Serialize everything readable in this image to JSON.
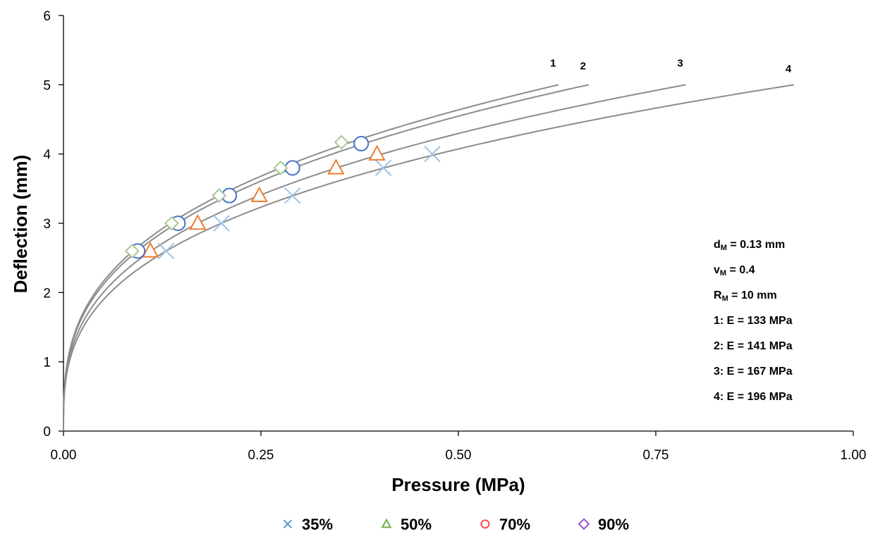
{
  "chart_data": {
    "type": "scatter",
    "xlabel": "Pressure (MPa)",
    "ylabel": "Deflection (mm)",
    "xlim": [
      0,
      1.0
    ],
    "ylim": [
      0,
      6
    ],
    "xticks": [
      "0.00",
      "0.25",
      "0.50",
      "0.75",
      "1.00"
    ],
    "yticks": [
      "0",
      "1",
      "2",
      "3",
      "4",
      "5",
      "6"
    ],
    "grid": false,
    "legend_position": "bottom",
    "curves": [
      {
        "label": "1",
        "E": 133,
        "xmax": 0.627
      },
      {
        "label": "2",
        "E": 141,
        "xmax": 0.665
      },
      {
        "label": "3",
        "E": 167,
        "xmax": 0.788
      },
      {
        "label": "4",
        "E": 196,
        "xmax": 0.925
      }
    ],
    "curve_color": "#8c8c8c",
    "series": [
      {
        "name": "35%",
        "marker": "x",
        "legend_color": "#5b9bd5",
        "color": "#9dc3e6",
        "points": [
          [
            0.13,
            2.6
          ],
          [
            0.2,
            3.0
          ],
          [
            0.29,
            3.4
          ],
          [
            0.405,
            3.8
          ],
          [
            0.467,
            4.0
          ]
        ]
      },
      {
        "name": "50%",
        "marker": "triangle",
        "legend_color": "#70ad47",
        "color": "#ed7d31",
        "points": [
          [
            0.11,
            2.6
          ],
          [
            0.17,
            3.0
          ],
          [
            0.248,
            3.4
          ],
          [
            0.345,
            3.8
          ],
          [
            0.397,
            4.0
          ]
        ]
      },
      {
        "name": "70%",
        "marker": "circle",
        "legend_color": "#ff4b4b",
        "color": "#4472c4",
        "points": [
          [
            0.094,
            2.6
          ],
          [
            0.145,
            3.0
          ],
          [
            0.21,
            3.4
          ],
          [
            0.29,
            3.8
          ],
          [
            0.377,
            4.15
          ]
        ]
      },
      {
        "name": "90%",
        "marker": "diamond",
        "legend_color": "#9b59d0",
        "color": "#a9c79a",
        "points": [
          [
            0.087,
            2.6
          ],
          [
            0.137,
            3.0
          ],
          [
            0.197,
            3.4
          ],
          [
            0.275,
            3.8
          ],
          [
            0.352,
            4.17
          ]
        ]
      }
    ],
    "annotations": [
      {
        "key": "ann1",
        "main": "d",
        "sub": "M",
        "rest": " = 0.13 mm"
      },
      {
        "key": "ann2",
        "main": "v",
        "sub": "M",
        "rest": " = 0.4"
      },
      {
        "key": "ann3",
        "main": "R",
        "sub": "M",
        "rest": " = 10 mm"
      },
      {
        "key": "ann4",
        "main": "1: E = 133 MPa",
        "sub": "",
        "rest": ""
      },
      {
        "key": "ann5",
        "main": "2: E = 141 MPa",
        "sub": "",
        "rest": ""
      },
      {
        "key": "ann6",
        "main": "3: E = 167 MPa",
        "sub": "",
        "rest": ""
      },
      {
        "key": "ann7",
        "main": "4: E = 196 MPa",
        "sub": "",
        "rest": ""
      }
    ]
  }
}
